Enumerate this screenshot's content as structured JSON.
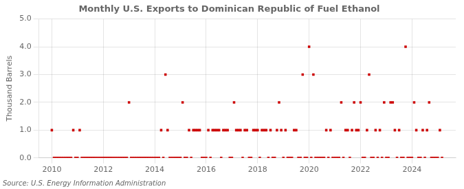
{
  "chart_data": {
    "type": "scatter",
    "title": "Monthly U.S. Exports to Dominican Republic of Fuel Ethanol",
    "y_label": "Thousand Barrels",
    "annotations": [
      "Source: U.S. Energy Information Administration"
    ],
    "color": "#cc0000",
    "marker": "square",
    "grid": true,
    "xlim": [
      2009.5,
      2025.7
    ],
    "xticks": [
      2010,
      2012,
      2014,
      2016,
      2018,
      2020,
      2022,
      2024
    ],
    "ylim": [
      0.0,
      5.0
    ],
    "yticks": [
      {
        "value": 0,
        "label": "0.0"
      },
      {
        "value": 1,
        "label": "1.0"
      },
      {
        "value": 2,
        "label": "2.0"
      },
      {
        "value": 3,
        "label": "3.0"
      },
      {
        "value": 4,
        "label": "4.0"
      },
      {
        "value": 5,
        "label": "5.0"
      }
    ],
    "x": [
      2010,
      2010.0833,
      2010.1667,
      2010.25,
      2010.3333,
      2010.4167,
      2010.5,
      2010.5833,
      2010.6667,
      2010.75,
      2010.8333,
      2010.9167,
      2011,
      2011.0833,
      2011.1667,
      2011.25,
      2011.3333,
      2011.4167,
      2011.5,
      2011.5833,
      2011.6667,
      2011.75,
      2011.8333,
      2011.9167,
      2012,
      2012.0833,
      2012.1667,
      2012.25,
      2012.3333,
      2012.4167,
      2012.5,
      2012.5833,
      2012.6667,
      2012.75,
      2012.8333,
      2012.9167,
      2013,
      2013.0833,
      2013.1667,
      2013.25,
      2013.3333,
      2013.4167,
      2013.5,
      2013.5833,
      2013.6667,
      2013.75,
      2013.8333,
      2013.9167,
      2014,
      2014.0833,
      2014.1667,
      2014.25,
      2014.3333,
      2014.4167,
      2014.5,
      2014.5833,
      2014.6667,
      2014.75,
      2014.8333,
      2014.9167,
      2015,
      2015.0833,
      2015.1667,
      2015.25,
      2015.3333,
      2015.4167,
      2015.5,
      2015.5833,
      2015.6667,
      2015.75,
      2015.8333,
      2015.9167,
      2016,
      2016.0833,
      2016.1667,
      2016.25,
      2016.3333,
      2016.4167,
      2016.5,
      2016.5833,
      2016.6667,
      2016.75,
      2016.8333,
      2016.9167,
      2017,
      2017.0833,
      2017.1667,
      2017.25,
      2017.3333,
      2017.4167,
      2017.5,
      2017.5833,
      2017.6667,
      2017.75,
      2017.8333,
      2017.9167,
      2018,
      2018.0833,
      2018.1667,
      2018.25,
      2018.3333,
      2018.4167,
      2018.5,
      2018.5833,
      2018.6667,
      2018.75,
      2018.8333,
      2018.9167,
      2019,
      2019.0833,
      2019.1667,
      2019.25,
      2019.3333,
      2019.4167,
      2019.5,
      2019.5833,
      2019.6667,
      2019.75,
      2019.8333,
      2019.9167,
      2020,
      2020.0833,
      2020.1667,
      2020.25,
      2020.3333,
      2020.4167,
      2020.5,
      2020.5833,
      2020.6667,
      2020.75,
      2020.8333,
      2020.9167,
      2021,
      2021.0833,
      2021.1667,
      2021.25,
      2021.3333,
      2021.4167,
      2021.5,
      2021.5833,
      2021.6667,
      2021.75,
      2021.8333,
      2021.9167,
      2022,
      2022.0833,
      2022.1667,
      2022.25,
      2022.3333,
      2022.4167,
      2022.5,
      2022.5833,
      2022.6667,
      2022.75,
      2022.8333,
      2022.9167,
      2023,
      2023.0833,
      2023.1667,
      2023.25,
      2023.3333,
      2023.4167,
      2023.5,
      2023.5833,
      2023.6667,
      2023.75,
      2023.8333,
      2023.9167,
      2024,
      2024.0833,
      2024.1667,
      2024.25,
      2024.3333,
      2024.4167,
      2024.5,
      2024.5833,
      2024.6667,
      2024.75,
      2024.8333,
      2024.9167,
      2025,
      2025.0833,
      2025.1667
    ],
    "values": [
      1,
      0,
      0,
      0,
      0,
      0,
      0,
      0,
      0,
      0,
      1,
      0,
      0,
      1,
      0,
      0,
      0,
      0,
      0,
      0,
      0,
      0,
      0,
      0,
      0,
      0,
      0,
      0,
      0,
      0,
      0,
      0,
      0,
      0,
      0,
      0,
      2,
      0,
      0,
      0,
      0,
      0,
      0,
      0,
      0,
      0,
      0,
      0,
      0,
      0,
      0,
      1,
      0,
      3,
      1,
      0,
      0,
      0,
      0,
      0,
      0,
      2,
      0,
      0,
      1,
      0,
      1,
      1,
      1,
      1,
      0,
      0,
      0,
      1,
      0,
      1,
      1,
      1,
      1,
      0,
      1,
      1,
      1,
      0,
      0,
      2,
      1,
      1,
      1,
      0,
      1,
      1,
      0,
      0,
      1,
      1,
      1,
      0,
      1,
      1,
      1,
      0,
      1,
      0,
      0,
      1,
      2,
      1,
      0,
      1,
      0,
      0,
      0,
      1,
      1,
      0,
      0,
      3,
      0,
      0,
      4,
      0,
      3,
      0,
      0,
      0,
      0,
      0,
      1,
      0,
      1,
      0,
      0,
      0,
      0,
      2,
      0,
      1,
      1,
      0,
      1,
      2,
      1,
      1,
      2,
      0,
      0,
      1,
      3,
      0,
      0,
      1,
      0,
      1,
      0,
      2,
      0,
      0,
      2,
      2,
      1,
      0,
      1,
      0,
      0,
      4,
      0,
      0,
      0,
      2,
      1,
      0,
      0,
      1,
      0,
      1,
      2,
      0,
      0,
      0,
      0,
      1,
      0
    ]
  }
}
